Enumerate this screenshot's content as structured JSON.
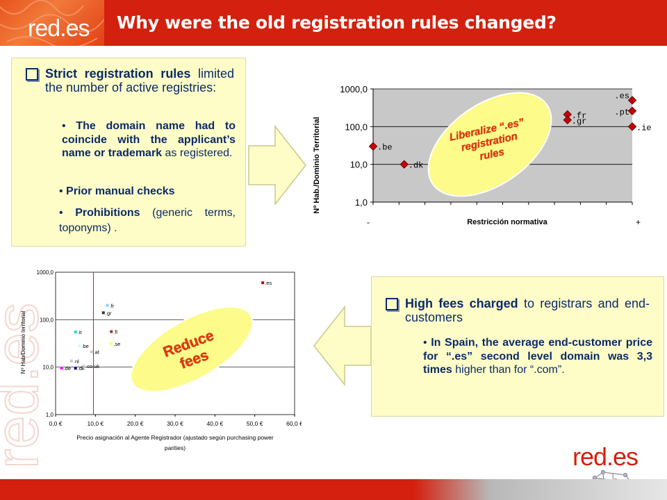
{
  "header": {
    "logo": "red.es",
    "title": "Why were the old registration rules changed?"
  },
  "box1": {
    "heading_bold": "Strict registration rules",
    "heading_rest": " limited the number of active registries:",
    "sub1_bold": "The domain name had to coincide with the applicant’s name or trademark",
    "sub1_rest": " as registered.",
    "sub2": "Prior manual checks",
    "sub3_bold": "Prohibitions",
    "sub3_rest": " (generic terms, toponyms) ."
  },
  "box2": {
    "heading_bold": "High fees charged",
    "heading_rest": " to registrars and end-customers",
    "sub1_bold": "In Spain, the average end-customer price for “.es” second level domain was 3,3 times",
    "sub1_rest": " higher than for “.com”."
  },
  "chart_data": [
    {
      "type": "scatter",
      "title": "",
      "xlabel": "Restricción normativa",
      "ylabel": "Nº Hab./Dominio Territorial",
      "yscale": "log",
      "ylim": [
        1,
        1000
      ],
      "yticks": [
        "1000,0",
        "100,0",
        "10,0",
        "1,0"
      ],
      "x_end_labels": [
        "-",
        "+"
      ],
      "points": [
        {
          "label": ".be",
          "x": 0.0,
          "y": 30
        },
        {
          "label": ".dk",
          "x": 0.12,
          "y": 10
        },
        {
          "label": ".fr",
          "x": 0.75,
          "y": 210
        },
        {
          "label": ".gr",
          "x": 0.75,
          "y": 150
        },
        {
          "label": ".es",
          "x": 1.0,
          "y": 500
        },
        {
          "label": ".pt",
          "x": 1.0,
          "y": 260
        },
        {
          "label": ".ie",
          "x": 1.0,
          "y": 100
        }
      ],
      "annotation": "Liberalize “.es” registration rules"
    },
    {
      "type": "scatter",
      "title": "",
      "xlabel": "Precio asignación al Agente Registrador (ajustado según purchasing power parities)",
      "ylabel": "Nº Hab/Dominio territorial",
      "yscale": "log",
      "ylim": [
        1,
        1000
      ],
      "xlim": [
        0,
        60
      ],
      "yticks": [
        "1000,0",
        "100,0",
        "10,0",
        "1,0"
      ],
      "xticks": [
        "0,0 €",
        "10,0 €",
        "20,0 €",
        "30,0 €",
        "40,0 €",
        "50,0 €",
        "60,0 €"
      ],
      "vline_x": 9.5,
      "points": [
        {
          "label": ".es",
          "x": 52,
          "y": 600,
          "color": "#cc0000"
        },
        {
          "label": ".fr",
          "x": 13,
          "y": 200,
          "color": "#99ccff"
        },
        {
          "label": ".gr",
          "x": 12,
          "y": 140,
          "color": "#333333"
        },
        {
          "label": ".it",
          "x": 5,
          "y": 55,
          "color": "#33cccc"
        },
        {
          "label": ".fi",
          "x": 14,
          "y": 56,
          "color": "#993333"
        },
        {
          "label": ".ie",
          "x": 33,
          "y": 95,
          "color": "#000080"
        },
        {
          "label": ".be",
          "x": 6,
          "y": 28,
          "color": "#ccffff"
        },
        {
          "label": ".se",
          "x": 14,
          "y": 31,
          "color": "#ffff66"
        },
        {
          "label": ".at",
          "x": 9,
          "y": 21,
          "color": "#cccccc"
        },
        {
          "label": ".nl",
          "x": 4,
          "y": 13.5,
          "color": "#cccccc"
        },
        {
          "label": ".co.uk",
          "x": 7,
          "y": 10.5,
          "color": "#cccccc"
        },
        {
          "label": ".dk",
          "x": 5,
          "y": 9.5,
          "color": "#000080"
        },
        {
          "label": ".de",
          "x": 1.5,
          "y": 9.5,
          "color": "#ff00ff"
        }
      ],
      "annotation": "Reduce fees"
    }
  ],
  "colors": {
    "header": "#d4200e",
    "box_fill": "#fefdc8",
    "text_blue": "#0b2a6a",
    "ellipse": "#fdfb8a",
    "marker": "#cc0000"
  },
  "footer_logo": "red.es"
}
